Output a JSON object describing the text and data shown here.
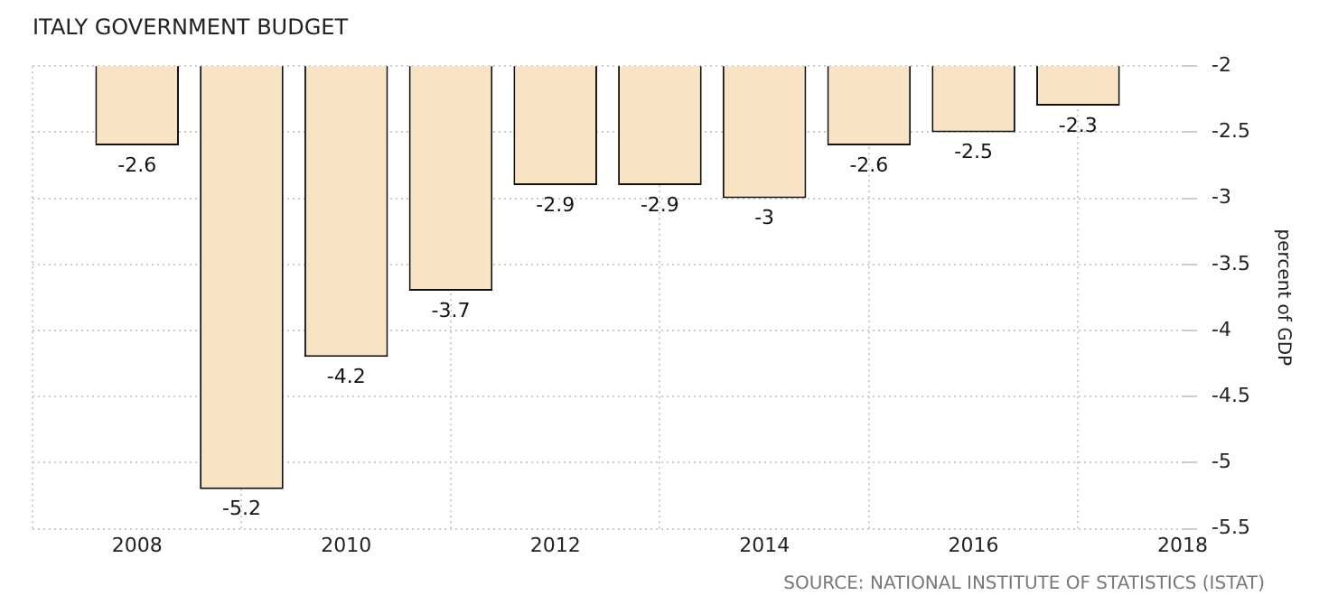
{
  "chart_data": {
    "type": "bar",
    "title": "ITALY GOVERNMENT BUDGET",
    "ylabel": "percent of GDP",
    "x": [
      2008,
      2009,
      2010,
      2011,
      2012,
      2013,
      2014,
      2015,
      2016,
      2017
    ],
    "values": [
      -2.6,
      -5.2,
      -4.2,
      -3.7,
      -2.9,
      -2.9,
      -3,
      -2.6,
      -2.5,
      -2.3
    ],
    "color": "#f8e4c4",
    "xlim": [
      2007,
      2018
    ],
    "xticks": [
      2008,
      2010,
      2012,
      2014,
      2016,
      2018
    ],
    "ylim": [
      -5.5,
      -2
    ],
    "yticks": [
      -2,
      -2.5,
      -3,
      -3.5,
      -4,
      -4.5,
      -5,
      -5.5
    ],
    "grid": true,
    "data_labels": true,
    "annotations": [
      "SOURCE: NATIONAL INSTITUTE OF STATISTICS (ISTAT)"
    ]
  }
}
